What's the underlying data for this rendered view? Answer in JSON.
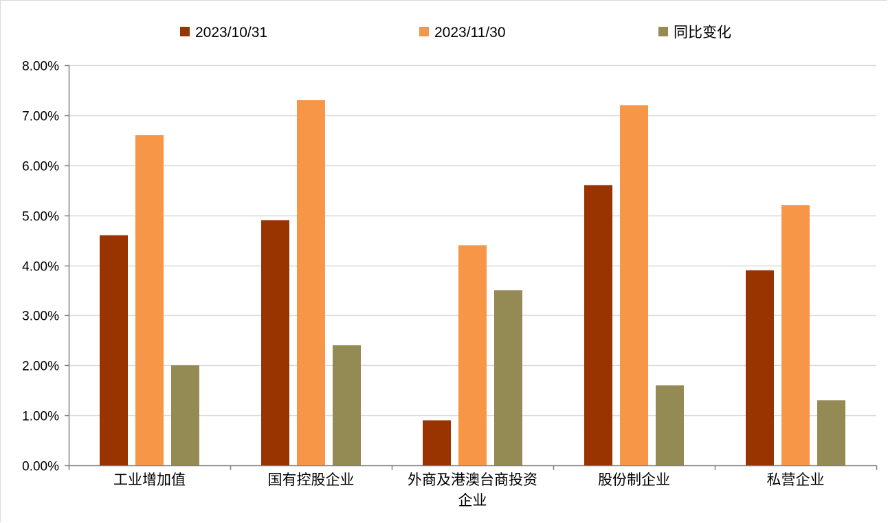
{
  "chart_data": {
    "type": "bar",
    "categories": [
      "工业增加值",
      "国有控股企业",
      "外商及港澳台商投资企业",
      "股份制企业",
      "私营企业"
    ],
    "category_label_lines": [
      [
        "工业增加值"
      ],
      [
        "国有控股企业"
      ],
      [
        "外商及港澳台商投资",
        "企业"
      ],
      [
        "股份制企业"
      ],
      [
        "私营企业"
      ]
    ],
    "series": [
      {
        "name": "2023/10/31",
        "values": [
          4.6,
          4.9,
          0.9,
          5.6,
          3.9
        ],
        "color": "#993300"
      },
      {
        "name": "2023/11/30",
        "values": [
          6.6,
          7.3,
          4.4,
          7.2,
          5.2
        ],
        "color": "#F79646"
      },
      {
        "name": "同比变化",
        "values": [
          2.0,
          2.4,
          3.5,
          1.6,
          1.3
        ],
        "color": "#948A54"
      }
    ],
    "ylim": [
      0,
      8
    ],
    "yticks": [
      0,
      1,
      2,
      3,
      4,
      5,
      6,
      7,
      8
    ],
    "ytick_labels": [
      "0.00%",
      "1.00%",
      "2.00%",
      "3.00%",
      "4.00%",
      "5.00%",
      "6.00%",
      "7.00%",
      "8.00%"
    ],
    "grid": true,
    "legend_position": "top"
  }
}
